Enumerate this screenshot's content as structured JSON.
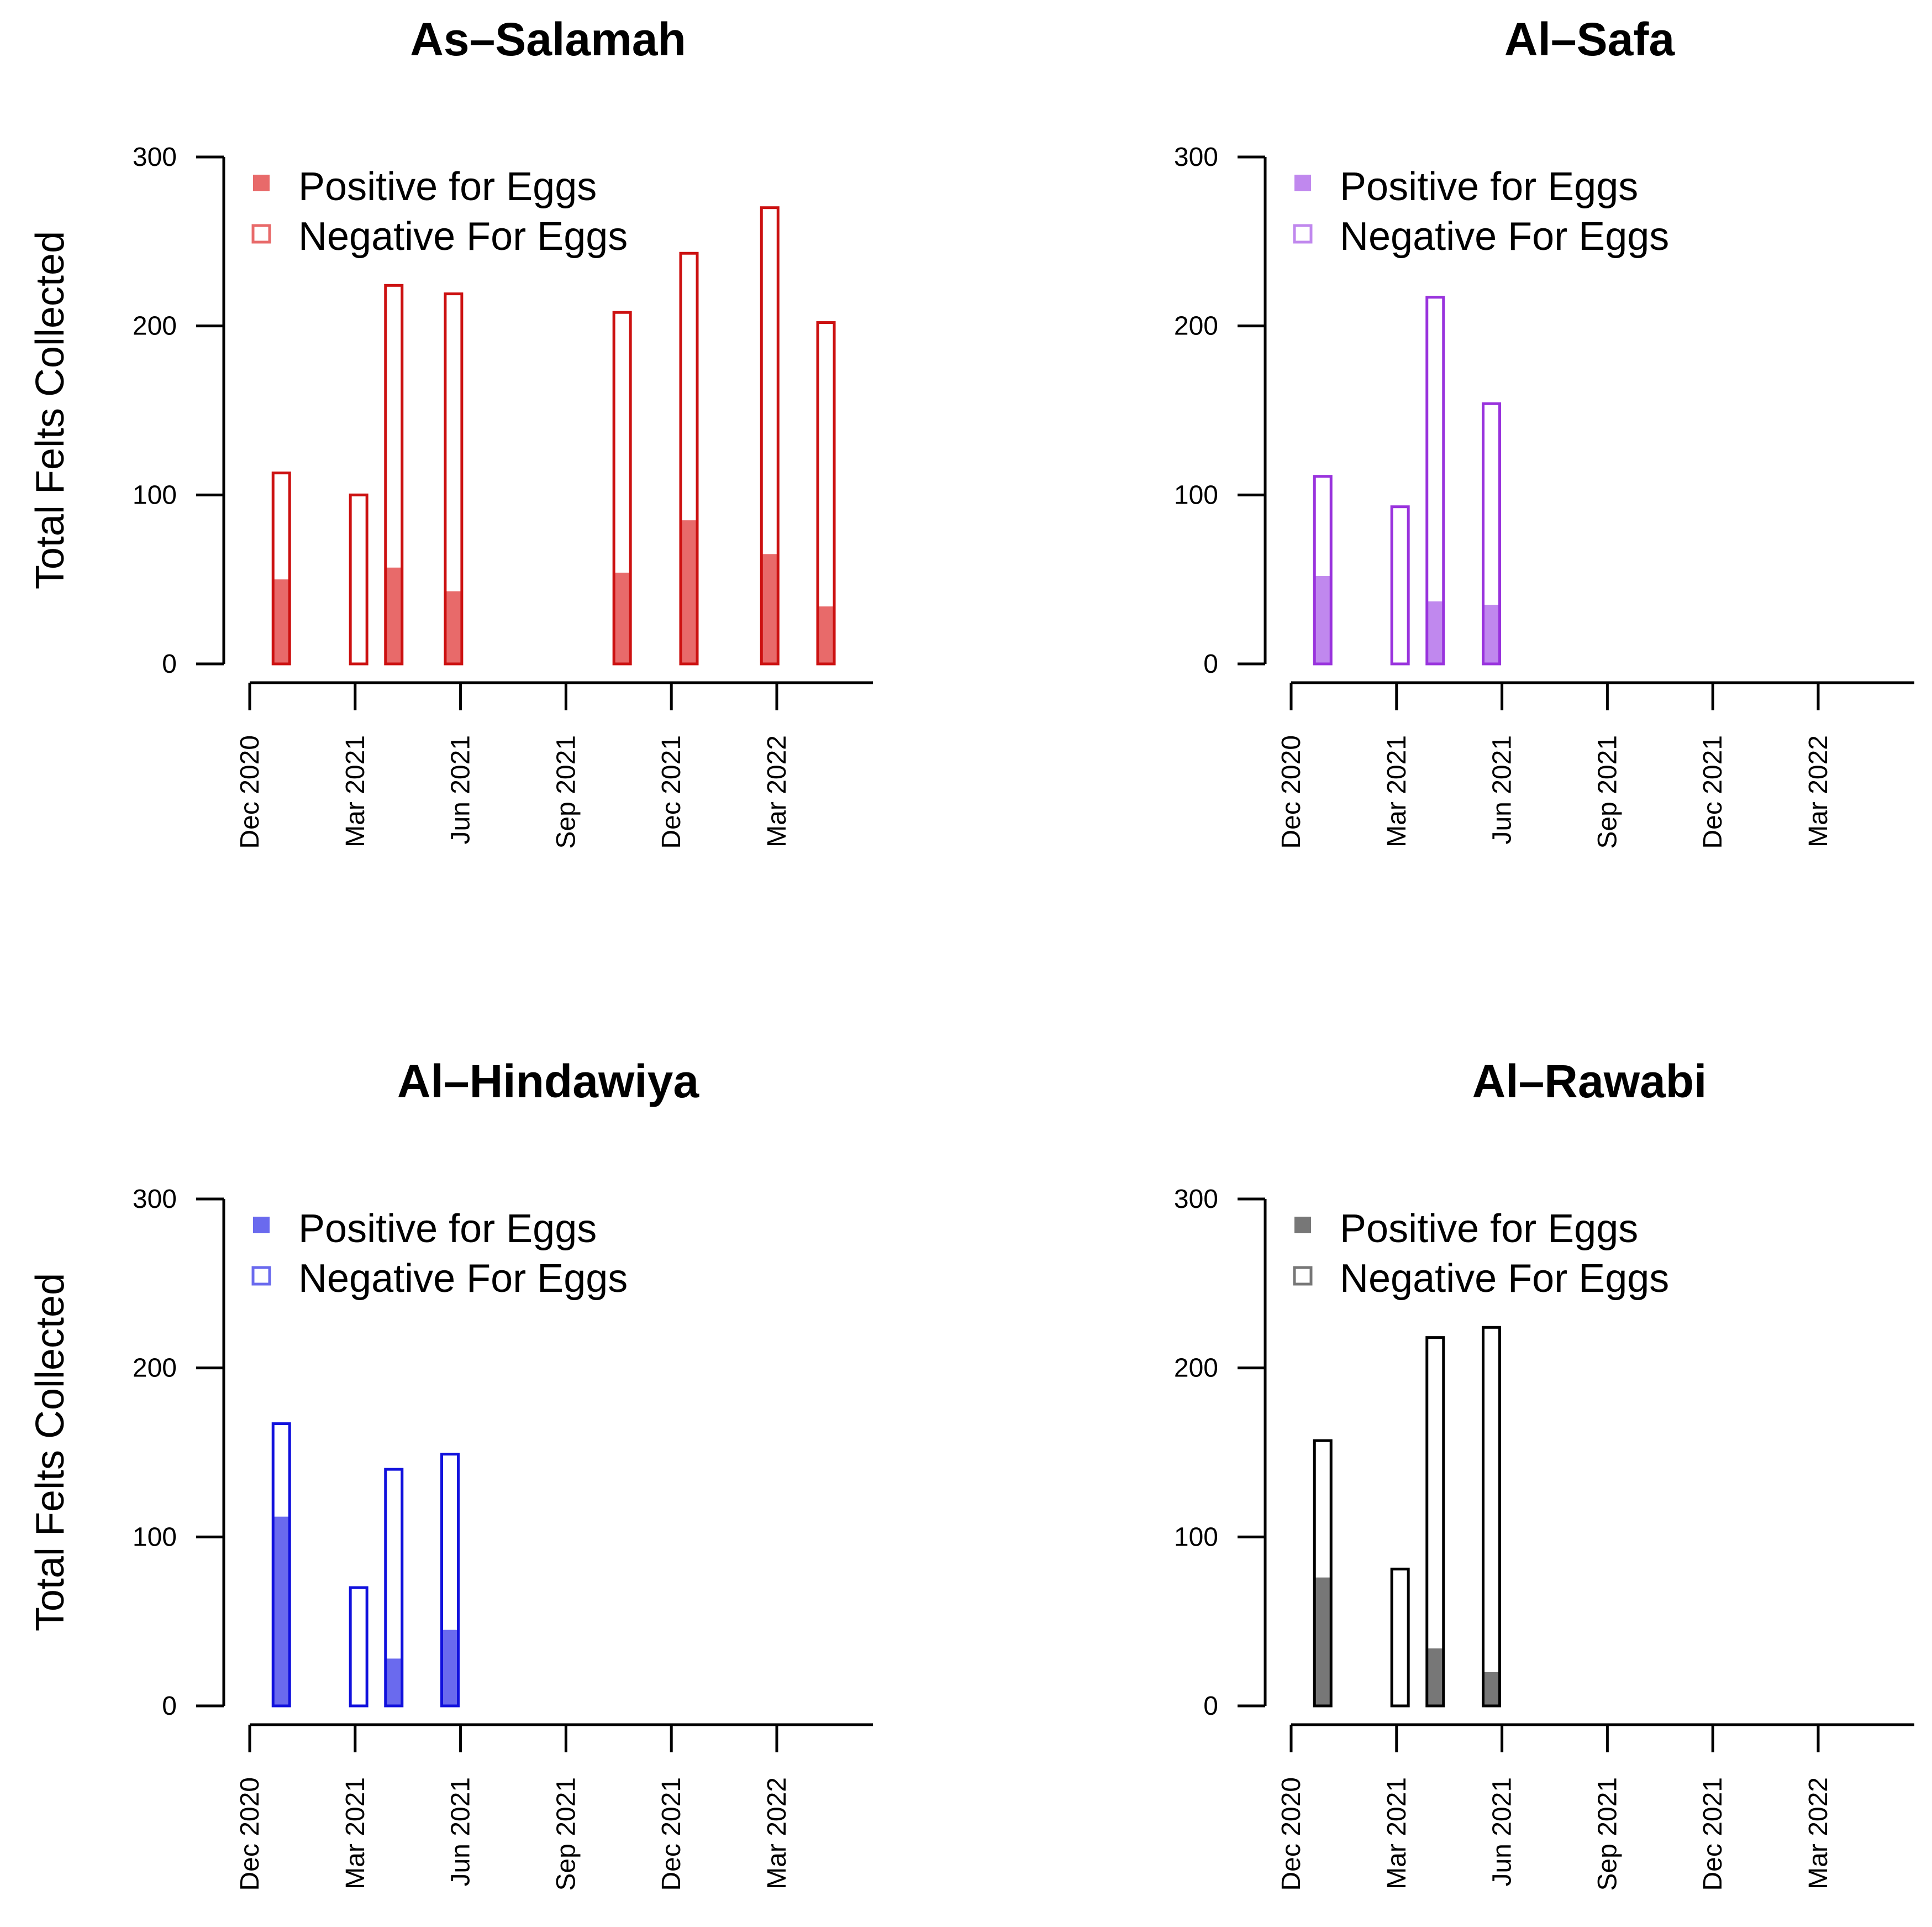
{
  "figure": {
    "ylabel": "Total Felts Collected",
    "xtick_labels": [
      "Dec 2020",
      "Mar 2021",
      "Jun 2021",
      "Sep 2021",
      "Dec 2021",
      "Mar 2022"
    ],
    "ytick_labels": [
      "0",
      "100",
      "200",
      "300"
    ],
    "legend": {
      "positive_label": "Positive for Eggs",
      "negative_label": "Negative For Eggs"
    }
  },
  "chart_data": [
    {
      "type": "bar",
      "title": "As–Salamah",
      "ylabel": "Total Felts Collected",
      "xlabel": "",
      "ylim": [
        0,
        300
      ],
      "x_range_months": [
        0,
        18
      ],
      "stroke_color": "#cc1111",
      "fill_color": "#e86a6a",
      "show_ylabel": true,
      "bars": [
        {
          "x_month": 0.9,
          "total": 113,
          "positive": 50
        },
        {
          "x_month": 3.1,
          "total": 100,
          "positive": 0
        },
        {
          "x_month": 4.1,
          "total": 224,
          "positive": 57
        },
        {
          "x_month": 5.8,
          "total": 219,
          "positive": 43
        },
        {
          "x_month": 10.6,
          "total": 208,
          "positive": 54
        },
        {
          "x_month": 12.5,
          "total": 243,
          "positive": 85
        },
        {
          "x_month": 14.8,
          "total": 270,
          "positive": 65
        },
        {
          "x_month": 16.4,
          "total": 202,
          "positive": 34
        }
      ]
    },
    {
      "type": "bar",
      "title": "Al–Safa",
      "ylabel": "",
      "xlabel": "",
      "ylim": [
        0,
        300
      ],
      "x_range_months": [
        0,
        18
      ],
      "stroke_color": "#9933dd",
      "fill_color": "#c088ee",
      "show_ylabel": false,
      "bars": [
        {
          "x_month": 0.9,
          "total": 111,
          "positive": 52
        },
        {
          "x_month": 3.1,
          "total": 93,
          "positive": 0
        },
        {
          "x_month": 4.1,
          "total": 217,
          "positive": 37
        },
        {
          "x_month": 5.7,
          "total": 154,
          "positive": 35
        }
      ]
    },
    {
      "type": "bar",
      "title": "Al–Hindawiya",
      "ylabel": "Total Felts Collected",
      "xlabel": "",
      "ylim": [
        0,
        300
      ],
      "x_range_months": [
        0,
        18
      ],
      "stroke_color": "#1111dd",
      "fill_color": "#6a6aee",
      "show_ylabel": true,
      "bars": [
        {
          "x_month": 0.9,
          "total": 167,
          "positive": 112
        },
        {
          "x_month": 3.1,
          "total": 70,
          "positive": 0
        },
        {
          "x_month": 4.1,
          "total": 140,
          "positive": 28
        },
        {
          "x_month": 5.7,
          "total": 149,
          "positive": 45
        }
      ]
    },
    {
      "type": "bar",
      "title": "Al–Rawabi",
      "ylabel": "",
      "xlabel": "",
      "ylim": [
        0,
        300
      ],
      "x_range_months": [
        0,
        18
      ],
      "stroke_color": "#000000",
      "fill_color": "#777777",
      "show_ylabel": false,
      "bars": [
        {
          "x_month": 0.9,
          "total": 157,
          "positive": 76
        },
        {
          "x_month": 3.1,
          "total": 81,
          "positive": 0
        },
        {
          "x_month": 4.1,
          "total": 218,
          "positive": 34
        },
        {
          "x_month": 5.7,
          "total": 224,
          "positive": 20
        }
      ]
    }
  ]
}
